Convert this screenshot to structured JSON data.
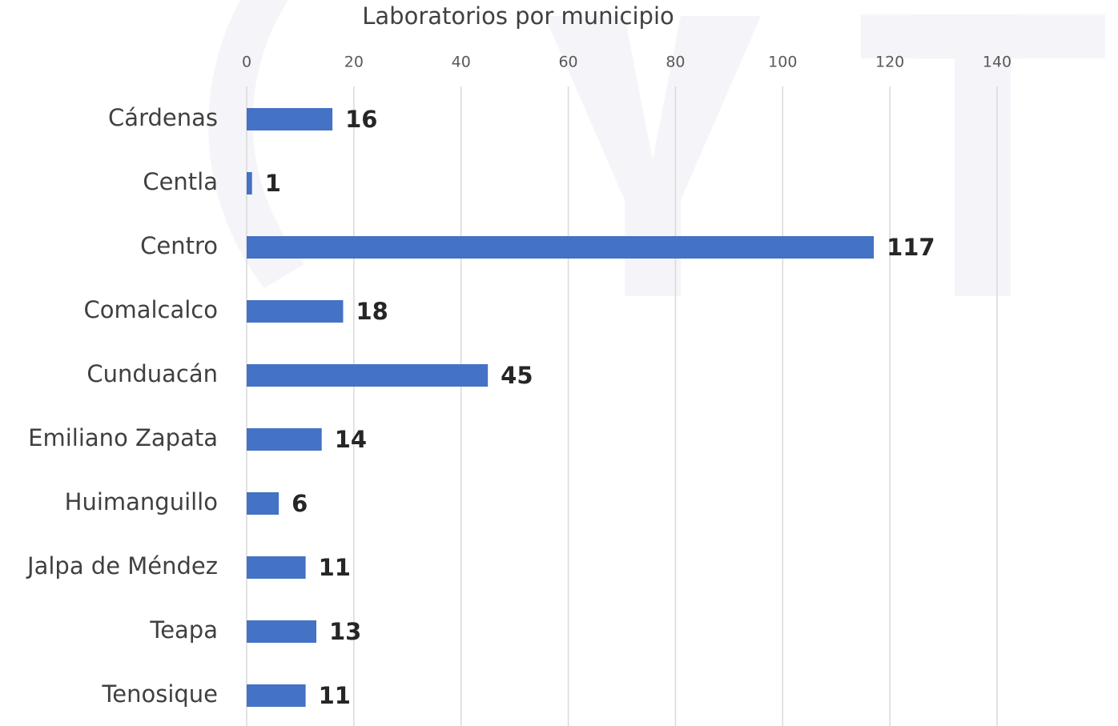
{
  "chart_data": {
    "type": "bar",
    "orientation": "horizontal",
    "title": "Laboratorios por municipio",
    "categories": [
      "Cárdenas",
      "Centla",
      "Centro",
      "Comalcalco",
      "Cunduacán",
      "Emiliano Zapata",
      "Huimanguillo",
      "Jalpa de Méndez",
      "Teapa",
      "Tenosique"
    ],
    "values": [
      16,
      1,
      117,
      18,
      45,
      14,
      6,
      11,
      13,
      11
    ],
    "color": "#4472c4",
    "xlim": [
      0,
      140
    ],
    "xticks": [
      0,
      20,
      40,
      60,
      80,
      100,
      120,
      140
    ],
    "grid": true
  }
}
